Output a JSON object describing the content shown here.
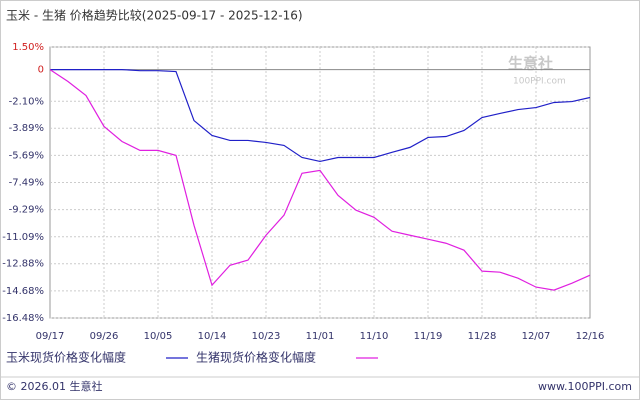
{
  "chart_data": {
    "type": "line",
    "title": "玉米 - 生猪  价格趋势比较(2025-09-17 - 2025-12-16)",
    "categories": [
      "09/17",
      null,
      null,
      "09/26",
      null,
      null,
      "10/05",
      null,
      null,
      "10/14",
      null,
      null,
      "10/23",
      null,
      null,
      "11/01",
      null,
      null,
      "11/10",
      null,
      null,
      "11/19",
      null,
      null,
      "11/28",
      null,
      null,
      "12/07",
      null,
      null,
      "12/16"
    ],
    "series": [
      {
        "name": "玉米现货价格变化幅度",
        "color": "#2020c8",
        "values": [
          0,
          0,
          0,
          0,
          0,
          -0.07,
          -0.07,
          -0.13,
          -3.38,
          -4.37,
          -4.7,
          -4.7,
          -4.83,
          -5.03,
          -5.83,
          -6.09,
          -5.83,
          -5.83,
          -5.83,
          -5.49,
          -5.16,
          -4.5,
          -4.44,
          -4.04,
          -3.18,
          -2.91,
          -2.65,
          -2.52,
          -2.18,
          -2.12,
          -1.85
        ]
      },
      {
        "name": "生猪现货价格变化幅度",
        "color": "#e020e0",
        "values": [
          0,
          -0.79,
          -1.72,
          -3.77,
          -4.77,
          -5.36,
          -5.36,
          -5.69,
          -10.33,
          -14.3,
          -12.98,
          -12.64,
          -10.99,
          -9.66,
          -6.88,
          -6.69,
          -8.34,
          -9.33,
          -9.8,
          -10.72,
          -10.99,
          -11.25,
          -11.52,
          -11.98,
          -13.37,
          -13.44,
          -13.84,
          -14.43,
          -14.63,
          -14.17,
          -13.64
        ]
      }
    ],
    "ylim": [
      -16.48,
      1.5
    ],
    "yticks": [
      {
        "value": 1.5,
        "label": "1.50%"
      },
      0,
      {
        "value": -2.1,
        "label": "-2.10%"
      },
      {
        "value": -3.89,
        "label": "-3.89%"
      },
      {
        "value": -5.69,
        "label": "-5.69%"
      },
      {
        "value": -7.49,
        "label": "-7.49%"
      },
      {
        "value": -9.29,
        "label": "-9.29%"
      },
      {
        "value": -11.09,
        "label": "-11.09%"
      },
      {
        "value": -12.88,
        "label": "-12.88%"
      },
      {
        "value": -14.68,
        "label": "-14.68%"
      },
      {
        "value": -16.48,
        "label": "-16.48%"
      }
    ],
    "grid": true
  },
  "watermark": {
    "name": "生意社",
    "site": "100PPI.com"
  },
  "footer": {
    "left": "© 2026.01 生意社",
    "right": "www.100PPI.com"
  }
}
